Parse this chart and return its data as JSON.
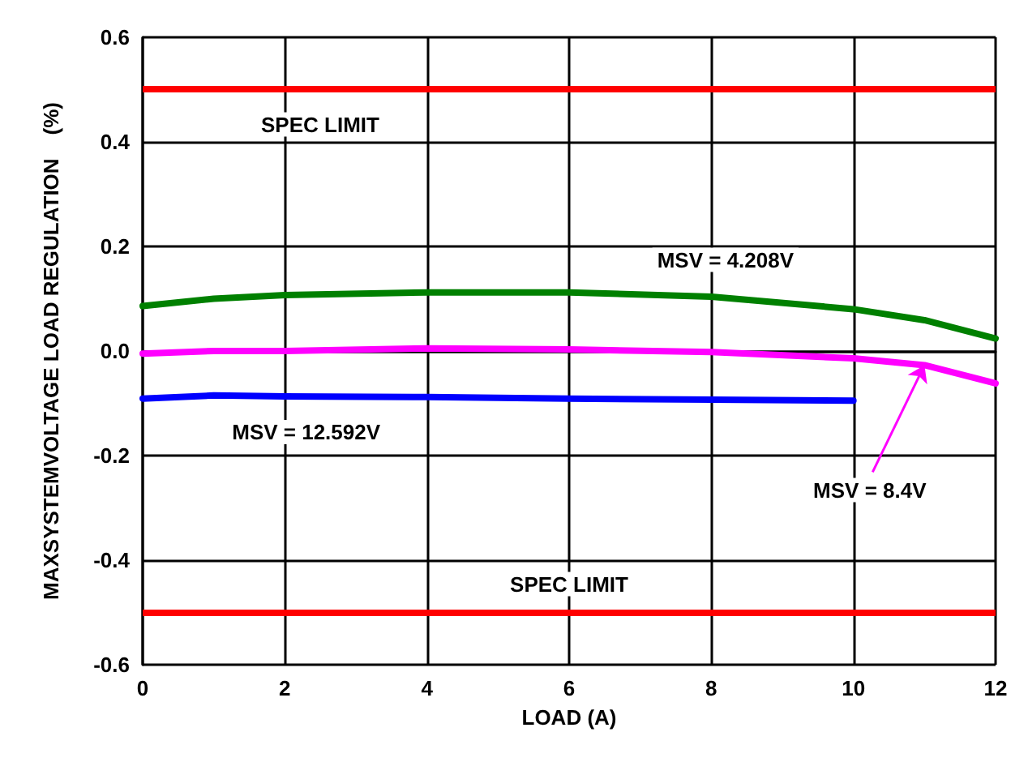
{
  "chart_data": {
    "type": "line",
    "xlabel": "LOAD (A)",
    "ylabel": "MAXSYSTEMVOLTAGE LOAD REGULATION    (%)",
    "x": [
      0,
      1,
      2,
      4,
      6,
      8,
      10,
      11,
      12
    ],
    "series": [
      {
        "color": "#008000",
        "values": [
          0.086,
          0.1,
          0.107,
          0.112,
          0.112,
          0.104,
          0.08,
          0.059,
          0.024
        ]
      },
      {
        "color": "#ff00ff",
        "values": [
          -0.005,
          0.0,
          0.0,
          0.005,
          0.003,
          -0.002,
          -0.014,
          -0.027,
          -0.062
        ]
      },
      {
        "color": "#0000ff",
        "values": [
          -0.091,
          -0.085,
          -0.087,
          -0.088,
          -0.091,
          -0.093,
          -0.095,
          null,
          null
        ]
      }
    ],
    "xlim": [
      0,
      12
    ],
    "xticks": [
      0,
      2,
      4,
      6,
      8,
      10,
      12
    ],
    "ylim": [
      -0.6,
      0.6
    ],
    "yticks": [
      {
        "value": -0.6,
        "label": "-0.6"
      },
      {
        "value": -0.4,
        "label": "-0.4"
      },
      {
        "value": -0.2,
        "label": "-0.2"
      },
      {
        "value": 0,
        "label": "0.0"
      },
      {
        "value": 0.2,
        "label": "0.2"
      },
      {
        "value": 0.4,
        "label": "0.4"
      },
      {
        "value": 0.6,
        "label": "0.6"
      }
    ],
    "ref_lines": [
      {
        "axis": "y",
        "value": 0.5,
        "label": "SPEC LIMIT",
        "color": "#ff0000"
      },
      {
        "axis": "y",
        "value": -0.5,
        "label": "SPEC LIMIT",
        "color": "#ff0000"
      }
    ],
    "annotations": [
      {
        "text": "MSV = 4.208V",
        "x": 8.2,
        "y": 0.1
      },
      {
        "text": "MSV = 12.592V",
        "x": 2.3,
        "y": -0.087
      },
      {
        "text": "MSV = 8.4V",
        "x": 11,
        "y": -0.027
      }
    ],
    "grid": true,
    "marker": "none",
    "line_style": "solid"
  }
}
